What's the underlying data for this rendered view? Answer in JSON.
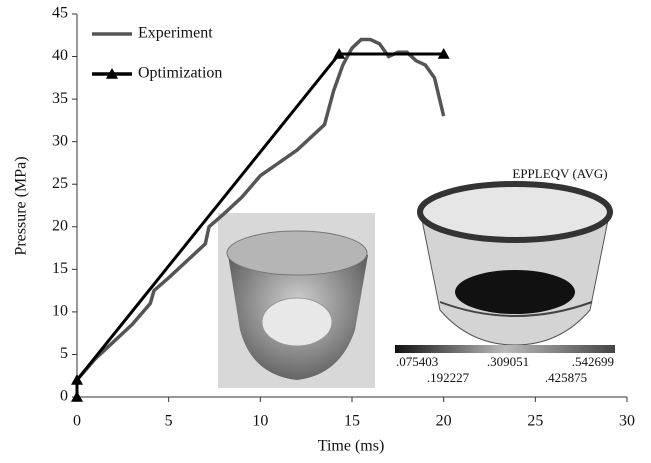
{
  "chart_data": {
    "type": "line",
    "xlabel": "Time (ms)",
    "ylabel": "Pressure (MPa)",
    "xlim": [
      0,
      30
    ],
    "xticks": [
      0,
      5,
      10,
      15,
      20,
      25,
      30
    ],
    "ylim": [
      0,
      45
    ],
    "yticks": [
      0,
      5,
      10,
      15,
      20,
      25,
      30,
      35,
      40,
      45
    ],
    "legend": "top-left",
    "series": [
      {
        "name": "Experiment",
        "color": "#555555",
        "marker": "none",
        "x": [
          0,
          1,
          2,
          3,
          4,
          4.2,
          5,
          6,
          7,
          7.2,
          8,
          9,
          10,
          11,
          12,
          12.5,
          13,
          13.5,
          14,
          14.5,
          15,
          15.5,
          16,
          16.5,
          17,
          17.5,
          18,
          18.5,
          19,
          19.5,
          20
        ],
        "values": [
          2,
          4.5,
          6.5,
          8.5,
          11,
          12.5,
          14,
          16,
          18,
          20,
          21.5,
          23.5,
          26,
          27.5,
          29,
          30,
          31,
          32,
          36,
          39,
          41,
          42,
          42,
          41.5,
          40,
          40.5,
          40.5,
          39.5,
          39,
          37.5,
          33
        ]
      },
      {
        "name": "Optimization",
        "color": "#000000",
        "marker": "triangle",
        "x": [
          0,
          0,
          14.3,
          20
        ],
        "values": [
          0,
          2,
          40.3,
          40.3
        ]
      }
    ],
    "inset_title": "EPPLEQV (AVG)",
    "colorbar_labels": [
      ".075403",
      ".309051",
      ".542699",
      ".192227",
      ".425875"
    ]
  }
}
